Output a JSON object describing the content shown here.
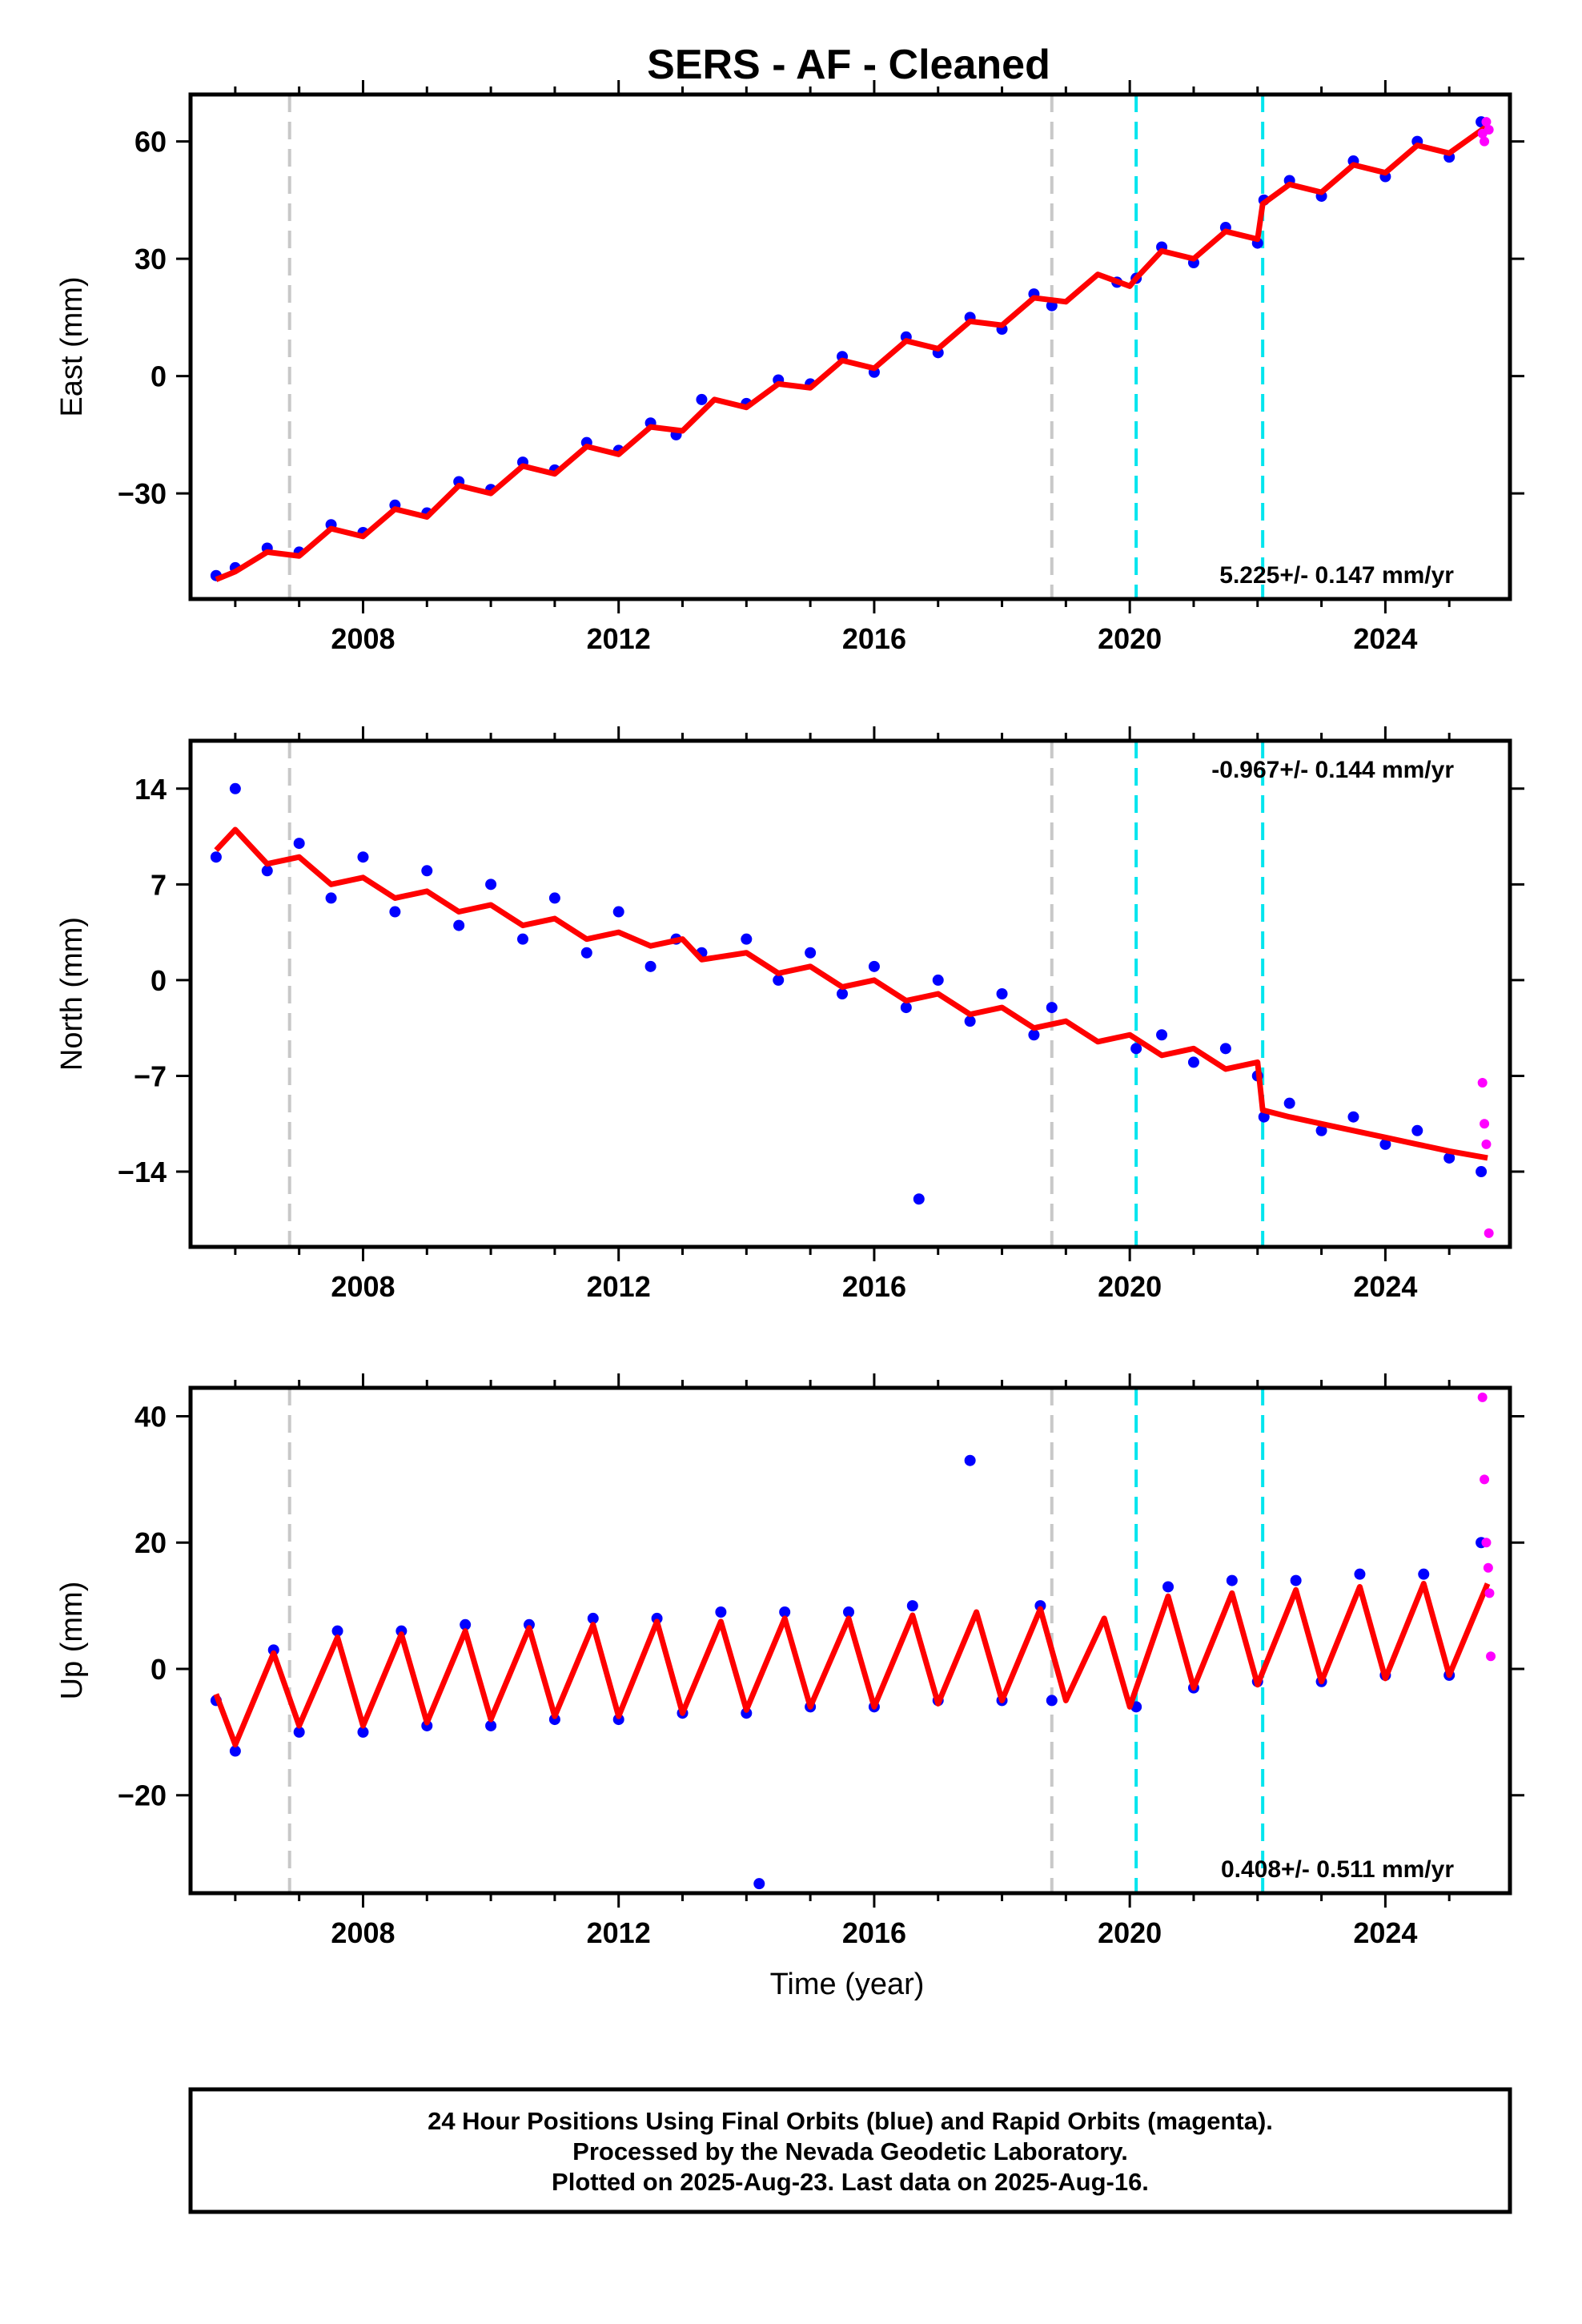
{
  "title": "SERS  - AF - Cleaned",
  "xlabel": "Time (year)",
  "footer": {
    "line1": "24 Hour Positions Using Final Orbits (blue) and Rapid Orbits (magenta).",
    "line2": "Processed by the Nevada Geodetic Laboratory.",
    "line3": "Plotted on 2025-Aug-23. Last data on 2025-Aug-16."
  },
  "colors": {
    "final_points": "#0000ff",
    "rapid_points": "#ff00ff",
    "model_line": "#ff0000",
    "gray_break": "#c8c8c8",
    "cyan_break": "#00e5ee"
  },
  "chart_data": [
    {
      "type": "scatter",
      "ylabel": "East (mm)",
      "xlim": [
        2005.3,
        2025.95
      ],
      "ylim": [
        -57,
        72
      ],
      "xticks": [
        2008,
        2012,
        2016,
        2020,
        2024
      ],
      "xtick_labels": [
        "2008",
        "2012",
        "2016",
        "2020",
        "2024"
      ],
      "yticks": [
        -30,
        0,
        30,
        60
      ],
      "ytick_labels": [
        "−30",
        "0",
        "30",
        "60"
      ],
      "rate_label": "5.225+/- 0.147 mm/yr",
      "rate_position": "bottom-right",
      "gray_breaks": [
        2006.85,
        2018.78
      ],
      "cyan_breaks": [
        2020.1,
        2022.08
      ],
      "model": {
        "x": [
          2005.7,
          2006.0,
          2006.5,
          2007.0,
          2007.5,
          2008.0,
          2008.5,
          2009.0,
          2009.5,
          2010.0,
          2010.5,
          2011.0,
          2011.5,
          2012.0,
          2012.5,
          2013.0,
          2013.5,
          2014.0,
          2014.5,
          2015.0,
          2015.5,
          2016.0,
          2016.5,
          2017.0,
          2017.5,
          2018.0,
          2018.5,
          2019.0,
          2019.5,
          2020.0,
          2020.1,
          2020.5,
          2021.0,
          2021.5,
          2022.0,
          2022.08,
          2022.5,
          2023.0,
          2023.5,
          2024.0,
          2024.5,
          2025.0,
          2025.6
        ],
        "y": [
          -52,
          -50,
          -45,
          -46,
          -39,
          -41,
          -34,
          -36,
          -28,
          -30,
          -23,
          -25,
          -18,
          -20,
          -13,
          -14,
          -6,
          -8,
          -2,
          -3,
          4,
          2,
          9,
          7,
          14,
          13,
          20,
          19,
          26,
          23,
          25,
          32,
          30,
          37,
          35,
          44,
          49,
          47,
          54,
          52,
          59,
          57,
          64
        ]
      },
      "final_positions": {
        "x": [
          2005.7,
          2006.0,
          2006.5,
          2007.0,
          2007.5,
          2008.0,
          2008.5,
          2009.0,
          2009.5,
          2010.0,
          2010.5,
          2011.0,
          2011.5,
          2012.0,
          2012.5,
          2012.9,
          2013.3,
          2014.0,
          2014.5,
          2015.0,
          2015.5,
          2016.0,
          2016.5,
          2017.0,
          2017.5,
          2018.0,
          2018.5,
          2018.78,
          2019.8,
          2020.1,
          2020.5,
          2021.0,
          2021.5,
          2022.0,
          2022.1,
          2022.5,
          2023.0,
          2023.5,
          2024.0,
          2024.5,
          2025.0,
          2025.5
        ],
        "y": [
          -51,
          -49,
          -44,
          -45,
          -38,
          -40,
          -33,
          -35,
          -27,
          -29,
          -22,
          -24,
          -17,
          -19,
          -12,
          -15,
          -6,
          -7,
          -1,
          -2,
          5,
          1,
          10,
          6,
          15,
          12,
          21,
          18,
          24,
          25,
          33,
          29,
          38,
          34,
          45,
          50,
          46,
          55,
          51,
          60,
          56,
          65
        ]
      },
      "rapid_positions": {
        "x": [
          2025.52,
          2025.55,
          2025.58,
          2025.62
        ],
        "y": [
          62,
          60,
          65,
          63
        ]
      }
    },
    {
      "type": "scatter",
      "ylabel": "North (mm)",
      "xlim": [
        2005.3,
        2025.95
      ],
      "ylim": [
        -19.5,
        17.5
      ],
      "xticks": [
        2008,
        2012,
        2016,
        2020,
        2024
      ],
      "xtick_labels": [
        "2008",
        "2012",
        "2016",
        "2020",
        "2024"
      ],
      "yticks": [
        -14,
        -7,
        0,
        7,
        14
      ],
      "ytick_labels": [
        "−14",
        "−7",
        "0",
        "7",
        "14"
      ],
      "rate_label": "-0.967+/- 0.144 mm/yr",
      "rate_position": "top-right",
      "gray_breaks": [
        2006.85,
        2018.78
      ],
      "cyan_breaks": [
        2020.1,
        2022.08
      ],
      "model": {
        "x": [
          2005.7,
          2006.0,
          2006.5,
          2007.0,
          2007.5,
          2008.0,
          2008.5,
          2009.0,
          2009.5,
          2010.0,
          2010.5,
          2011.0,
          2011.5,
          2012.0,
          2012.5,
          2013.0,
          2013.3,
          2014.0,
          2014.5,
          2015.0,
          2015.5,
          2016.0,
          2016.5,
          2017.0,
          2017.5,
          2018.0,
          2018.5,
          2019.0,
          2019.5,
          2020.0,
          2020.5,
          2021.0,
          2021.5,
          2022.0,
          2022.08,
          2022.5,
          2023.0,
          2023.5,
          2024.0,
          2024.5,
          2025.0,
          2025.6
        ],
        "y": [
          9.5,
          11,
          8.5,
          9,
          7,
          7.5,
          6,
          6.5,
          5,
          5.5,
          4,
          4.5,
          3,
          3.5,
          2.5,
          3,
          1.5,
          2,
          0.5,
          1,
          -0.5,
          0,
          -1.5,
          -1,
          -2.5,
          -2,
          -3.5,
          -3,
          -4.5,
          -4,
          -5.5,
          -5,
          -6.5,
          -6,
          -9.5,
          -10,
          -10.5,
          -11,
          -11.5,
          -12,
          -12.5,
          -13
        ]
      },
      "final_positions": {
        "x": [
          2005.7,
          2006.0,
          2006.5,
          2007.0,
          2007.5,
          2008.0,
          2008.5,
          2009.0,
          2009.5,
          2010.0,
          2010.5,
          2011.0,
          2011.5,
          2012.0,
          2012.5,
          2012.9,
          2013.3,
          2014.0,
          2014.5,
          2015.0,
          2015.5,
          2016.0,
          2016.5,
          2016.7,
          2017.0,
          2017.5,
          2018.0,
          2018.5,
          2018.78,
          2020.1,
          2020.5,
          2021.0,
          2021.5,
          2022.0,
          2022.1,
          2022.5,
          2023.0,
          2023.5,
          2024.0,
          2024.5,
          2025.0,
          2025.5
        ],
        "y": [
          9,
          14,
          8,
          10,
          6,
          9,
          5,
          8,
          4,
          7,
          3,
          6,
          2,
          5,
          1,
          3,
          2,
          3,
          0,
          2,
          -1,
          1,
          -2,
          -16,
          0,
          -3,
          -1,
          -4,
          -2,
          -5,
          -4,
          -6,
          -5,
          -7,
          -10,
          -9,
          -11,
          -10,
          -12,
          -11,
          -13,
          -14
        ]
      },
      "rapid_positions": {
        "x": [
          2025.52,
          2025.55,
          2025.58,
          2025.62
        ],
        "y": [
          -7.5,
          -10.5,
          -12,
          -18.5
        ]
      }
    },
    {
      "type": "scatter",
      "ylabel": "Up (mm)",
      "xlim": [
        2005.3,
        2025.95
      ],
      "ylim": [
        -35.5,
        44.5
      ],
      "xticks": [
        2008,
        2012,
        2016,
        2020,
        2024
      ],
      "xtick_labels": [
        "2008",
        "2012",
        "2016",
        "2020",
        "2024"
      ],
      "yticks": [
        -20,
        0,
        20,
        40
      ],
      "ytick_labels": [
        "−20",
        "0",
        "20",
        "40"
      ],
      "rate_label": "0.408+/- 0.511 mm/yr",
      "rate_position": "bottom-right",
      "gray_breaks": [
        2006.85,
        2018.78
      ],
      "cyan_breaks": [
        2020.1,
        2022.08
      ],
      "model": {
        "x": [
          2005.7,
          2006.0,
          2006.6,
          2007.0,
          2007.6,
          2008.0,
          2008.6,
          2009.0,
          2009.6,
          2010.0,
          2010.6,
          2011.0,
          2011.6,
          2012.0,
          2012.6,
          2013.0,
          2013.6,
          2014.0,
          2014.6,
          2015.0,
          2015.6,
          2016.0,
          2016.6,
          2017.0,
          2017.6,
          2018.0,
          2018.6,
          2019.0,
          2019.6,
          2020.0,
          2020.6,
          2021.0,
          2021.6,
          2022.0,
          2022.6,
          2023.0,
          2023.6,
          2024.0,
          2024.6,
          2025.0,
          2025.6
        ],
        "y": [
          -4,
          -12,
          2.5,
          -9,
          5,
          -9,
          5.5,
          -8.5,
          6,
          -8,
          6.5,
          -7.5,
          7,
          -7.5,
          7.5,
          -7,
          7.5,
          -6.5,
          8,
          -6,
          8,
          -6,
          8.5,
          -5.5,
          9,
          -5,
          9.5,
          -5,
          8,
          -6,
          11.5,
          -3,
          12,
          -2.5,
          12.5,
          -2,
          13,
          -1.5,
          13.5,
          -1,
          13.5
        ]
      },
      "final_positions": {
        "x": [
          2005.7,
          2006.0,
          2006.6,
          2007.0,
          2007.6,
          2008.0,
          2008.6,
          2009.0,
          2009.6,
          2010.0,
          2010.6,
          2011.0,
          2011.6,
          2012.0,
          2012.6,
          2013.0,
          2013.6,
          2014.0,
          2014.2,
          2014.6,
          2015.0,
          2015.6,
          2016.0,
          2016.6,
          2017.0,
          2017.5,
          2018.0,
          2018.6,
          2018.78,
          2020.1,
          2020.6,
          2021.0,
          2021.6,
          2022.0,
          2022.6,
          2023.0,
          2023.6,
          2024.0,
          2024.6,
          2025.0,
          2025.5
        ],
        "y": [
          -5,
          -13,
          3,
          -10,
          6,
          -10,
          6,
          -9,
          7,
          -9,
          7,
          -8,
          8,
          -8,
          8,
          -7,
          9,
          -7,
          -34,
          9,
          -6,
          9,
          -6,
          10,
          -5,
          33,
          -5,
          10,
          -5,
          -6,
          13,
          -3,
          14,
          -2,
          14,
          -2,
          15,
          -1,
          15,
          -1,
          20
        ]
      },
      "rapid_positions": {
        "x": [
          2025.52,
          2025.55,
          2025.58,
          2025.61,
          2025.63,
          2025.65
        ],
        "y": [
          43,
          30,
          20,
          16,
          12,
          2
        ]
      }
    }
  ]
}
